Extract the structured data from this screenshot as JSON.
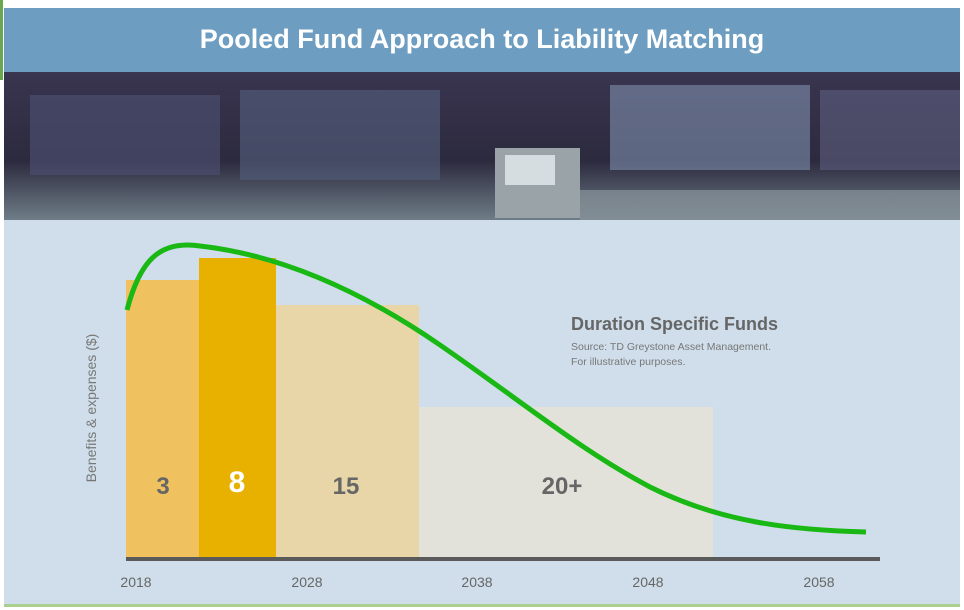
{
  "header": {
    "title": "Pooled Fund Approach to Liability Matching"
  },
  "chart": {
    "y_axis_label": "Benefits & expenses ($)",
    "segments": [
      {
        "label": "3"
      },
      {
        "label": "8"
      },
      {
        "label": "15"
      },
      {
        "label": "20+"
      }
    ],
    "x_axis_labels": [
      "2018",
      "2028",
      "2038",
      "2048",
      "2058"
    ],
    "annotation": {
      "title": "Duration Specific Funds",
      "source": "Source: TD Greystone Asset Management.",
      "note": "For illustrative purposes."
    }
  }
}
